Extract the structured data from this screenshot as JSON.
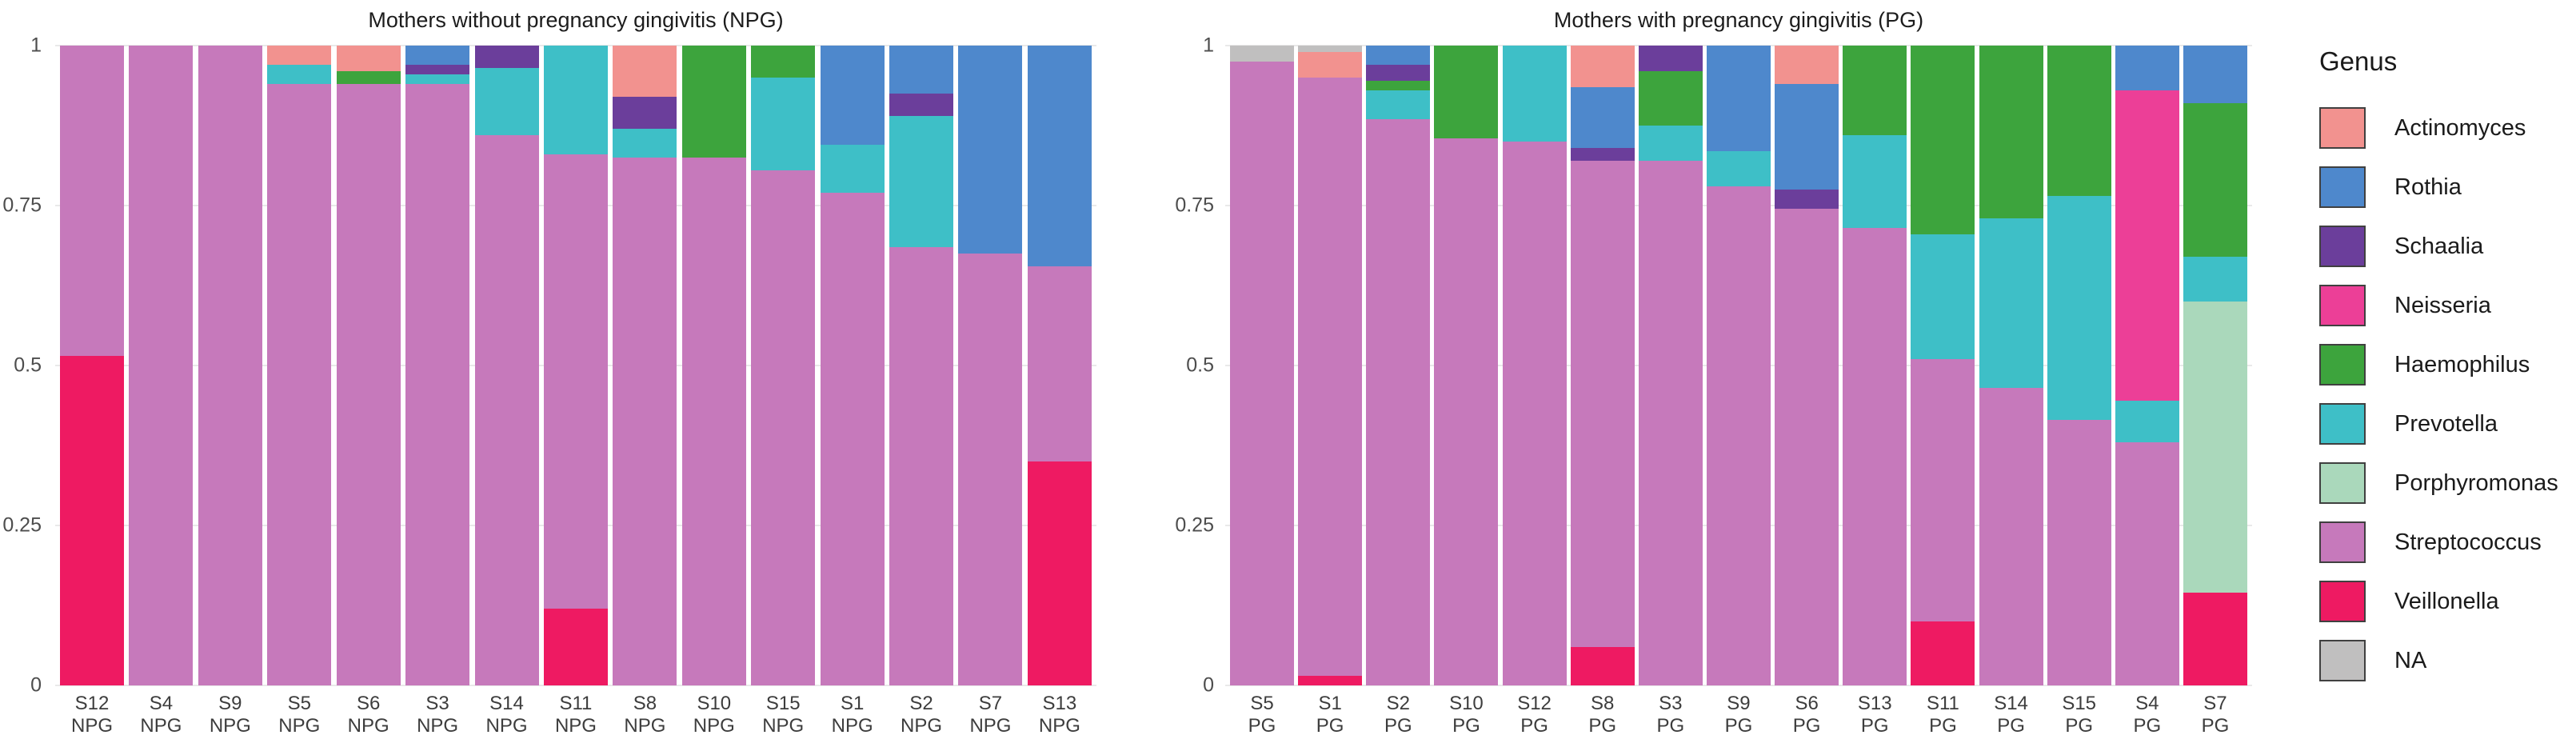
{
  "figure": {
    "background": "#ffffff"
  },
  "colors": {
    "Actinomyces": "#F2928F",
    "Rothia": "#4E88CC",
    "Schaalia": "#6B3E9B",
    "Neisseria": "#EC3F97",
    "Haemophilus": "#3DA43D",
    "Prevotella": "#3EBFC7",
    "Porphyromonas": "#AAD8BB",
    "Streptococcus": "#C679BB",
    "Veillonella": "#EE1A62",
    "NA": "#C0BFBF"
  },
  "legend": {
    "title": "Genus",
    "items": [
      "Actinomyces",
      "Rothia",
      "Schaalia",
      "Neisseria",
      "Haemophilus",
      "Prevotella",
      "Porphyromonas",
      "Streptococcus",
      "Veillonella",
      "NA"
    ]
  },
  "chart_data": [
    {
      "type": "bar",
      "stacked": true,
      "normalized": true,
      "title": "Mothers without pregnancy gingivitis (NPG)",
      "group": "NPG",
      "ylim": [
        0,
        1
      ],
      "y_ticks": [
        {
          "label": "1",
          "value": 1
        },
        {
          "label": "0.75",
          "value": 0.75
        },
        {
          "label": "0.5",
          "value": 0.5
        },
        {
          "label": "0.25",
          "value": 0.25
        },
        {
          "label": "0",
          "value": 0
        }
      ],
      "gridlines": [
        0,
        0.25,
        0.5,
        0.75,
        1
      ],
      "bars": [
        {
          "sample": "S12",
          "group": "NPG",
          "segments": [
            {
              "genus": "Streptococcus",
              "value": 0.485
            },
            {
              "genus": "Veillonella",
              "value": 0.515
            }
          ]
        },
        {
          "sample": "S4",
          "group": "NPG",
          "segments": [
            {
              "genus": "Streptococcus",
              "value": 1.0
            }
          ]
        },
        {
          "sample": "S9",
          "group": "NPG",
          "segments": [
            {
              "genus": "Streptococcus",
              "value": 1.0
            }
          ]
        },
        {
          "sample": "S5",
          "group": "NPG",
          "segments": [
            {
              "genus": "Actinomyces",
              "value": 0.03
            },
            {
              "genus": "Prevotella",
              "value": 0.03
            },
            {
              "genus": "Streptococcus",
              "value": 0.94
            }
          ]
        },
        {
          "sample": "S6",
          "group": "NPG",
          "segments": [
            {
              "genus": "Actinomyces",
              "value": 0.04
            },
            {
              "genus": "Haemophilus",
              "value": 0.02
            },
            {
              "genus": "Streptococcus",
              "value": 0.94
            }
          ]
        },
        {
          "sample": "S3",
          "group": "NPG",
          "segments": [
            {
              "genus": "Rothia",
              "value": 0.03
            },
            {
              "genus": "Schaalia",
              "value": 0.015
            },
            {
              "genus": "Prevotella",
              "value": 0.015
            },
            {
              "genus": "Streptococcus",
              "value": 0.94
            }
          ]
        },
        {
          "sample": "S14",
          "group": "NPG",
          "segments": [
            {
              "genus": "Schaalia",
              "value": 0.035
            },
            {
              "genus": "Prevotella",
              "value": 0.105
            },
            {
              "genus": "Streptococcus",
              "value": 0.86
            }
          ]
        },
        {
          "sample": "S11",
          "group": "NPG",
          "segments": [
            {
              "genus": "Prevotella",
              "value": 0.17
            },
            {
              "genus": "Streptococcus",
              "value": 0.71
            },
            {
              "genus": "Veillonella",
              "value": 0.12
            }
          ]
        },
        {
          "sample": "S8",
          "group": "NPG",
          "segments": [
            {
              "genus": "Actinomyces",
              "value": 0.08
            },
            {
              "genus": "Schaalia",
              "value": 0.05
            },
            {
              "genus": "Prevotella",
              "value": 0.045
            },
            {
              "genus": "Streptococcus",
              "value": 0.825
            }
          ]
        },
        {
          "sample": "S10",
          "group": "NPG",
          "segments": [
            {
              "genus": "Haemophilus",
              "value": 0.175
            },
            {
              "genus": "Streptococcus",
              "value": 0.825
            }
          ]
        },
        {
          "sample": "S15",
          "group": "NPG",
          "segments": [
            {
              "genus": "Haemophilus",
              "value": 0.05
            },
            {
              "genus": "Prevotella",
              "value": 0.145
            },
            {
              "genus": "Streptococcus",
              "value": 0.805
            }
          ]
        },
        {
          "sample": "S1",
          "group": "NPG",
          "segments": [
            {
              "genus": "Rothia",
              "value": 0.155
            },
            {
              "genus": "Prevotella",
              "value": 0.075
            },
            {
              "genus": "Streptococcus",
              "value": 0.77
            }
          ]
        },
        {
          "sample": "S2",
          "group": "NPG",
          "segments": [
            {
              "genus": "Rothia",
              "value": 0.075
            },
            {
              "genus": "Schaalia",
              "value": 0.035
            },
            {
              "genus": "Prevotella",
              "value": 0.205
            },
            {
              "genus": "Streptococcus",
              "value": 0.685
            }
          ]
        },
        {
          "sample": "S7",
          "group": "NPG",
          "segments": [
            {
              "genus": "Rothia",
              "value": 0.325
            },
            {
              "genus": "Streptococcus",
              "value": 0.675
            }
          ]
        },
        {
          "sample": "S13",
          "group": "NPG",
          "segments": [
            {
              "genus": "Rothia",
              "value": 0.345
            },
            {
              "genus": "Streptococcus",
              "value": 0.305
            },
            {
              "genus": "Veillonella",
              "value": 0.35
            }
          ]
        }
      ]
    },
    {
      "type": "bar",
      "stacked": true,
      "normalized": true,
      "title": "Mothers with pregnancy gingivitis (PG)",
      "group": "PG",
      "ylim": [
        0,
        1
      ],
      "y_ticks": [
        {
          "label": "1",
          "value": 1
        },
        {
          "label": "0.75",
          "value": 0.75
        },
        {
          "label": "0.5",
          "value": 0.5
        },
        {
          "label": "0.25",
          "value": 0.25
        },
        {
          "label": "0",
          "value": 0
        }
      ],
      "gridlines": [
        0,
        0.25,
        0.5,
        0.75,
        1
      ],
      "bars": [
        {
          "sample": "S5",
          "group": "PG",
          "segments": [
            {
              "genus": "NA",
              "value": 0.025
            },
            {
              "genus": "Streptococcus",
              "value": 0.975
            }
          ]
        },
        {
          "sample": "S1",
          "group": "PG",
          "segments": [
            {
              "genus": "NA",
              "value": 0.01
            },
            {
              "genus": "Actinomyces",
              "value": 0.04
            },
            {
              "genus": "Streptococcus",
              "value": 0.935
            },
            {
              "genus": "Veillonella",
              "value": 0.015
            }
          ]
        },
        {
          "sample": "S2",
          "group": "PG",
          "segments": [
            {
              "genus": "Rothia",
              "value": 0.03
            },
            {
              "genus": "Schaalia",
              "value": 0.025
            },
            {
              "genus": "Haemophilus",
              "value": 0.015
            },
            {
              "genus": "Prevotella",
              "value": 0.045
            },
            {
              "genus": "Streptococcus",
              "value": 0.885
            }
          ]
        },
        {
          "sample": "S10",
          "group": "PG",
          "segments": [
            {
              "genus": "Haemophilus",
              "value": 0.145
            },
            {
              "genus": "Streptococcus",
              "value": 0.855
            }
          ]
        },
        {
          "sample": "S12",
          "group": "PG",
          "segments": [
            {
              "genus": "Prevotella",
              "value": 0.15
            },
            {
              "genus": "Streptococcus",
              "value": 0.85
            }
          ]
        },
        {
          "sample": "S8",
          "group": "PG",
          "segments": [
            {
              "genus": "Actinomyces",
              "value": 0.065
            },
            {
              "genus": "Rothia",
              "value": 0.095
            },
            {
              "genus": "Schaalia",
              "value": 0.02
            },
            {
              "genus": "Streptococcus",
              "value": 0.76
            },
            {
              "genus": "Veillonella",
              "value": 0.06
            }
          ]
        },
        {
          "sample": "S3",
          "group": "PG",
          "segments": [
            {
              "genus": "Schaalia",
              "value": 0.04
            },
            {
              "genus": "Haemophilus",
              "value": 0.085
            },
            {
              "genus": "Prevotella",
              "value": 0.055
            },
            {
              "genus": "Streptococcus",
              "value": 0.82
            }
          ]
        },
        {
          "sample": "S9",
          "group": "PG",
          "segments": [
            {
              "genus": "Rothia",
              "value": 0.165
            },
            {
              "genus": "Prevotella",
              "value": 0.055
            },
            {
              "genus": "Streptococcus",
              "value": 0.78
            }
          ]
        },
        {
          "sample": "S6",
          "group": "PG",
          "segments": [
            {
              "genus": "Actinomyces",
              "value": 0.06
            },
            {
              "genus": "Rothia",
              "value": 0.165
            },
            {
              "genus": "Schaalia",
              "value": 0.03
            },
            {
              "genus": "Streptococcus",
              "value": 0.745
            }
          ]
        },
        {
          "sample": "S13",
          "group": "PG",
          "segments": [
            {
              "genus": "Haemophilus",
              "value": 0.14
            },
            {
              "genus": "Prevotella",
              "value": 0.145
            },
            {
              "genus": "Streptococcus",
              "value": 0.715
            }
          ]
        },
        {
          "sample": "S11",
          "group": "PG",
          "segments": [
            {
              "genus": "Haemophilus",
              "value": 0.295
            },
            {
              "genus": "Prevotella",
              "value": 0.195
            },
            {
              "genus": "Streptococcus",
              "value": 0.41
            },
            {
              "genus": "Veillonella",
              "value": 0.1
            }
          ]
        },
        {
          "sample": "S14",
          "group": "PG",
          "segments": [
            {
              "genus": "Haemophilus",
              "value": 0.27
            },
            {
              "genus": "Prevotella",
              "value": 0.265
            },
            {
              "genus": "Streptococcus",
              "value": 0.465
            }
          ]
        },
        {
          "sample": "S15",
          "group": "PG",
          "segments": [
            {
              "genus": "Haemophilus",
              "value": 0.235
            },
            {
              "genus": "Prevotella",
              "value": 0.35
            },
            {
              "genus": "Streptococcus",
              "value": 0.415
            }
          ]
        },
        {
          "sample": "S4",
          "group": "PG",
          "segments": [
            {
              "genus": "Rothia",
              "value": 0.07
            },
            {
              "genus": "Neisseria",
              "value": 0.485
            },
            {
              "genus": "Prevotella",
              "value": 0.065
            },
            {
              "genus": "Streptococcus",
              "value": 0.38
            }
          ]
        },
        {
          "sample": "S7",
          "group": "PG",
          "segments": [
            {
              "genus": "Rothia",
              "value": 0.09
            },
            {
              "genus": "Haemophilus",
              "value": 0.24
            },
            {
              "genus": "Prevotella",
              "value": 0.07
            },
            {
              "genus": "Porphyromonas",
              "value": 0.455
            },
            {
              "genus": "Veillonella",
              "value": 0.145
            }
          ]
        }
      ]
    }
  ]
}
